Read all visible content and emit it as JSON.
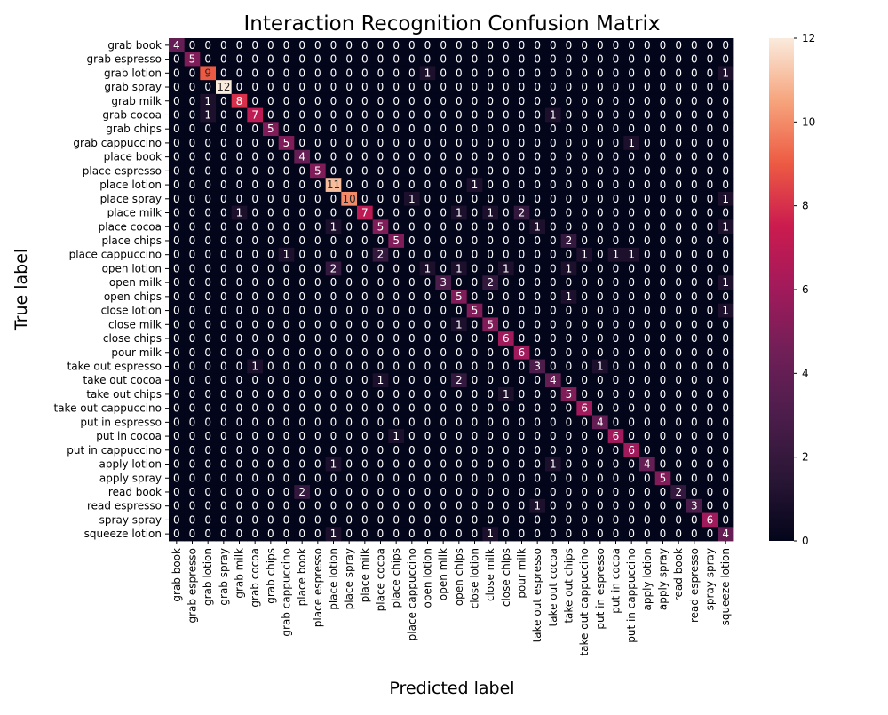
{
  "chart_data": {
    "type": "heatmap",
    "title": "Interaction Recognition Confusion Matrix",
    "xlabel": "Predicted label",
    "ylabel": "True label",
    "labels": [
      "grab book",
      "grab espresso",
      "grab lotion",
      "grab spray",
      "grab milk",
      "grab cocoa",
      "grab chips",
      "grab cappuccino",
      "place book",
      "place espresso",
      "place lotion",
      "place spray",
      "place milk",
      "place cocoa",
      "place chips",
      "place cappuccino",
      "open lotion",
      "open milk",
      "open chips",
      "close lotion",
      "close milk",
      "close chips",
      "pour milk",
      "take out espresso",
      "take out cocoa",
      "take out chips",
      "take out cappuccino",
      "put in espresso",
      "put in cocoa",
      "put in cappuccino",
      "apply lotion",
      "apply spray",
      "read book",
      "read espresso",
      "spray spray",
      "squeeze lotion"
    ],
    "colorbar": {
      "min": 0,
      "max": 12,
      "ticks": [
        0,
        2,
        4,
        6,
        8,
        10,
        12
      ]
    },
    "colormap": "rocket",
    "matrix": [
      [
        4,
        0,
        0,
        0,
        0,
        0,
        0,
        0,
        0,
        0,
        0,
        0,
        0,
        0,
        0,
        0,
        0,
        0,
        0,
        0,
        0,
        0,
        0,
        0,
        0,
        0,
        0,
        0,
        0,
        0,
        0,
        0,
        0,
        0,
        0,
        0
      ],
      [
        0,
        5,
        0,
        0,
        0,
        0,
        0,
        0,
        0,
        0,
        0,
        0,
        0,
        0,
        0,
        0,
        0,
        0,
        0,
        0,
        0,
        0,
        0,
        0,
        0,
        0,
        0,
        0,
        0,
        0,
        0,
        0,
        0,
        0,
        0,
        0
      ],
      [
        0,
        0,
        9,
        0,
        0,
        0,
        0,
        0,
        0,
        0,
        0,
        0,
        0,
        0,
        0,
        0,
        1,
        0,
        0,
        0,
        0,
        0,
        0,
        0,
        0,
        0,
        0,
        0,
        0,
        0,
        0,
        0,
        0,
        0,
        0,
        1
      ],
      [
        0,
        0,
        0,
        12,
        0,
        0,
        0,
        0,
        0,
        0,
        0,
        0,
        0,
        0,
        0,
        0,
        0,
        0,
        0,
        0,
        0,
        0,
        0,
        0,
        0,
        0,
        0,
        0,
        0,
        0,
        0,
        0,
        0,
        0,
        0,
        0
      ],
      [
        0,
        0,
        1,
        0,
        8,
        0,
        0,
        0,
        0,
        0,
        0,
        0,
        0,
        0,
        0,
        0,
        0,
        0,
        0,
        0,
        0,
        0,
        0,
        0,
        0,
        0,
        0,
        0,
        0,
        0,
        0,
        0,
        0,
        0,
        0,
        0
      ],
      [
        0,
        0,
        1,
        0,
        0,
        7,
        0,
        0,
        0,
        0,
        0,
        0,
        0,
        0,
        0,
        0,
        0,
        0,
        0,
        0,
        0,
        0,
        0,
        0,
        1,
        0,
        0,
        0,
        0,
        0,
        0,
        0,
        0,
        0,
        0,
        0
      ],
      [
        0,
        0,
        0,
        0,
        0,
        0,
        5,
        0,
        0,
        0,
        0,
        0,
        0,
        0,
        0,
        0,
        0,
        0,
        0,
        0,
        0,
        0,
        0,
        0,
        0,
        0,
        0,
        0,
        0,
        0,
        0,
        0,
        0,
        0,
        0,
        0
      ],
      [
        0,
        0,
        0,
        0,
        0,
        0,
        0,
        5,
        0,
        0,
        0,
        0,
        0,
        0,
        0,
        0,
        0,
        0,
        0,
        0,
        0,
        0,
        0,
        0,
        0,
        0,
        0,
        0,
        0,
        1,
        0,
        0,
        0,
        0,
        0,
        0
      ],
      [
        0,
        0,
        0,
        0,
        0,
        0,
        0,
        0,
        4,
        0,
        0,
        0,
        0,
        0,
        0,
        0,
        0,
        0,
        0,
        0,
        0,
        0,
        0,
        0,
        0,
        0,
        0,
        0,
        0,
        0,
        0,
        0,
        0,
        0,
        0,
        0
      ],
      [
        0,
        0,
        0,
        0,
        0,
        0,
        0,
        0,
        0,
        5,
        0,
        0,
        0,
        0,
        0,
        0,
        0,
        0,
        0,
        0,
        0,
        0,
        0,
        0,
        0,
        0,
        0,
        0,
        0,
        0,
        0,
        0,
        0,
        0,
        0,
        0
      ],
      [
        0,
        0,
        0,
        0,
        0,
        0,
        0,
        0,
        0,
        0,
        11,
        0,
        0,
        0,
        0,
        0,
        0,
        0,
        0,
        1,
        0,
        0,
        0,
        0,
        0,
        0,
        0,
        0,
        0,
        0,
        0,
        0,
        0,
        0,
        0,
        0
      ],
      [
        0,
        0,
        0,
        0,
        0,
        0,
        0,
        0,
        0,
        0,
        0,
        10,
        0,
        0,
        0,
        1,
        0,
        0,
        0,
        0,
        0,
        0,
        0,
        0,
        0,
        0,
        0,
        0,
        0,
        0,
        0,
        0,
        0,
        0,
        0,
        1
      ],
      [
        0,
        0,
        0,
        0,
        1,
        0,
        0,
        0,
        0,
        0,
        0,
        0,
        7,
        0,
        0,
        0,
        0,
        0,
        1,
        0,
        1,
        0,
        2,
        0,
        0,
        0,
        0,
        0,
        0,
        0,
        0,
        0,
        0,
        0,
        0,
        0
      ],
      [
        0,
        0,
        0,
        0,
        0,
        0,
        0,
        0,
        0,
        0,
        1,
        0,
        0,
        5,
        0,
        0,
        0,
        0,
        0,
        0,
        0,
        0,
        0,
        1,
        0,
        0,
        0,
        0,
        0,
        0,
        0,
        0,
        0,
        0,
        0,
        1
      ],
      [
        0,
        0,
        0,
        0,
        0,
        0,
        0,
        0,
        0,
        0,
        0,
        0,
        0,
        0,
        5,
        0,
        0,
        0,
        0,
        0,
        0,
        0,
        0,
        0,
        0,
        2,
        0,
        0,
        0,
        0,
        0,
        0,
        0,
        0,
        0,
        0
      ],
      [
        0,
        0,
        0,
        0,
        0,
        0,
        0,
        1,
        0,
        0,
        0,
        0,
        0,
        2,
        0,
        0,
        0,
        0,
        0,
        0,
        0,
        0,
        0,
        0,
        0,
        0,
        1,
        0,
        1,
        1,
        0,
        0,
        0,
        0,
        0,
        0
      ],
      [
        0,
        0,
        0,
        0,
        0,
        0,
        0,
        0,
        0,
        0,
        2,
        0,
        0,
        0,
        0,
        0,
        1,
        0,
        1,
        0,
        0,
        1,
        0,
        0,
        0,
        1,
        0,
        0,
        0,
        0,
        0,
        0,
        0,
        0,
        0,
        0
      ],
      [
        0,
        0,
        0,
        0,
        0,
        0,
        0,
        0,
        0,
        0,
        0,
        0,
        0,
        0,
        0,
        0,
        0,
        3,
        0,
        0,
        2,
        0,
        0,
        0,
        0,
        0,
        0,
        0,
        0,
        0,
        0,
        0,
        0,
        0,
        0,
        1
      ],
      [
        0,
        0,
        0,
        0,
        0,
        0,
        0,
        0,
        0,
        0,
        0,
        0,
        0,
        0,
        0,
        0,
        0,
        0,
        5,
        0,
        0,
        0,
        0,
        0,
        0,
        1,
        0,
        0,
        0,
        0,
        0,
        0,
        0,
        0,
        0,
        0
      ],
      [
        0,
        0,
        0,
        0,
        0,
        0,
        0,
        0,
        0,
        0,
        0,
        0,
        0,
        0,
        0,
        0,
        0,
        0,
        0,
        5,
        0,
        0,
        0,
        0,
        0,
        0,
        0,
        0,
        0,
        0,
        0,
        0,
        0,
        0,
        0,
        1
      ],
      [
        0,
        0,
        0,
        0,
        0,
        0,
        0,
        0,
        0,
        0,
        0,
        0,
        0,
        0,
        0,
        0,
        0,
        0,
        1,
        0,
        5,
        0,
        0,
        0,
        0,
        0,
        0,
        0,
        0,
        0,
        0,
        0,
        0,
        0,
        0,
        0
      ],
      [
        0,
        0,
        0,
        0,
        0,
        0,
        0,
        0,
        0,
        0,
        0,
        0,
        0,
        0,
        0,
        0,
        0,
        0,
        0,
        0,
        0,
        6,
        0,
        0,
        0,
        0,
        0,
        0,
        0,
        0,
        0,
        0,
        0,
        0,
        0,
        0
      ],
      [
        0,
        0,
        0,
        0,
        0,
        0,
        0,
        0,
        0,
        0,
        0,
        0,
        0,
        0,
        0,
        0,
        0,
        0,
        0,
        0,
        0,
        0,
        6,
        0,
        0,
        0,
        0,
        0,
        0,
        0,
        0,
        0,
        0,
        0,
        0,
        0
      ],
      [
        0,
        0,
        0,
        0,
        0,
        1,
        0,
        0,
        0,
        0,
        0,
        0,
        0,
        0,
        0,
        0,
        0,
        0,
        0,
        0,
        0,
        0,
        0,
        3,
        0,
        0,
        0,
        1,
        0,
        0,
        0,
        0,
        0,
        0,
        0,
        0
      ],
      [
        0,
        0,
        0,
        0,
        0,
        0,
        0,
        0,
        0,
        0,
        0,
        0,
        0,
        1,
        0,
        0,
        0,
        0,
        2,
        0,
        0,
        0,
        0,
        0,
        4,
        0,
        0,
        0,
        0,
        0,
        0,
        0,
        0,
        0,
        0,
        0
      ],
      [
        0,
        0,
        0,
        0,
        0,
        0,
        0,
        0,
        0,
        0,
        0,
        0,
        0,
        0,
        0,
        0,
        0,
        0,
        0,
        0,
        0,
        1,
        0,
        0,
        0,
        5,
        0,
        0,
        0,
        0,
        0,
        0,
        0,
        0,
        0,
        0
      ],
      [
        0,
        0,
        0,
        0,
        0,
        0,
        0,
        0,
        0,
        0,
        0,
        0,
        0,
        0,
        0,
        0,
        0,
        0,
        0,
        0,
        0,
        0,
        0,
        0,
        0,
        0,
        6,
        0,
        0,
        0,
        0,
        0,
        0,
        0,
        0,
        0
      ],
      [
        0,
        0,
        0,
        0,
        0,
        0,
        0,
        0,
        0,
        0,
        0,
        0,
        0,
        0,
        0,
        0,
        0,
        0,
        0,
        0,
        0,
        0,
        0,
        0,
        0,
        0,
        0,
        4,
        0,
        0,
        0,
        0,
        0,
        0,
        0,
        0
      ],
      [
        0,
        0,
        0,
        0,
        0,
        0,
        0,
        0,
        0,
        0,
        0,
        0,
        0,
        0,
        1,
        0,
        0,
        0,
        0,
        0,
        0,
        0,
        0,
        0,
        0,
        0,
        0,
        0,
        6,
        0,
        0,
        0,
        0,
        0,
        0,
        0
      ],
      [
        0,
        0,
        0,
        0,
        0,
        0,
        0,
        0,
        0,
        0,
        0,
        0,
        0,
        0,
        0,
        0,
        0,
        0,
        0,
        0,
        0,
        0,
        0,
        0,
        0,
        0,
        0,
        0,
        0,
        6,
        0,
        0,
        0,
        0,
        0,
        0
      ],
      [
        0,
        0,
        0,
        0,
        0,
        0,
        0,
        0,
        0,
        0,
        1,
        0,
        0,
        0,
        0,
        0,
        0,
        0,
        0,
        0,
        0,
        0,
        0,
        0,
        1,
        0,
        0,
        0,
        0,
        0,
        4,
        0,
        0,
        0,
        0,
        0
      ],
      [
        0,
        0,
        0,
        0,
        0,
        0,
        0,
        0,
        0,
        0,
        0,
        0,
        0,
        0,
        0,
        0,
        0,
        0,
        0,
        0,
        0,
        0,
        0,
        0,
        0,
        0,
        0,
        0,
        0,
        0,
        0,
        5,
        0,
        0,
        0,
        0
      ],
      [
        0,
        0,
        0,
        0,
        0,
        0,
        0,
        0,
        2,
        0,
        0,
        0,
        0,
        0,
        0,
        0,
        0,
        0,
        0,
        0,
        0,
        0,
        0,
        0,
        0,
        0,
        0,
        0,
        0,
        0,
        0,
        0,
        2,
        0,
        0,
        0
      ],
      [
        0,
        0,
        0,
        0,
        0,
        0,
        0,
        0,
        0,
        0,
        0,
        0,
        0,
        0,
        0,
        0,
        0,
        0,
        0,
        0,
        0,
        0,
        0,
        1,
        0,
        0,
        0,
        0,
        0,
        0,
        0,
        0,
        0,
        3,
        0,
        0
      ],
      [
        0,
        0,
        0,
        0,
        0,
        0,
        0,
        0,
        0,
        0,
        0,
        0,
        0,
        0,
        0,
        0,
        0,
        0,
        0,
        0,
        0,
        0,
        0,
        0,
        0,
        0,
        0,
        0,
        0,
        0,
        0,
        0,
        0,
        0,
        6,
        0
      ],
      [
        0,
        0,
        0,
        0,
        0,
        0,
        0,
        0,
        0,
        0,
        1,
        0,
        0,
        0,
        0,
        0,
        0,
        0,
        0,
        0,
        1,
        0,
        0,
        0,
        0,
        0,
        0,
        0,
        0,
        0,
        0,
        0,
        0,
        0,
        0,
        4
      ]
    ]
  }
}
